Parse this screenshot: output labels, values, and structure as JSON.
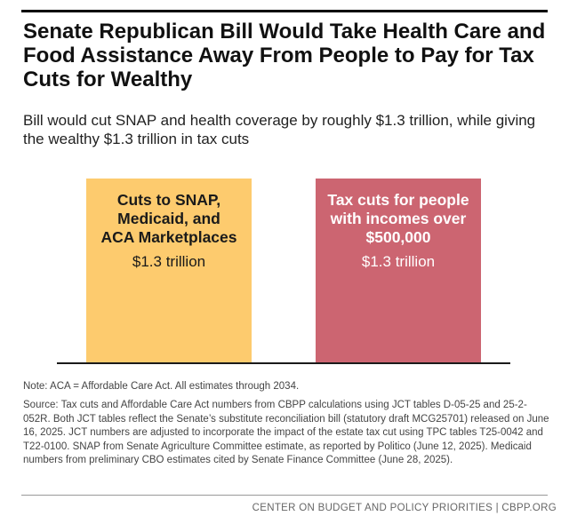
{
  "title": "Senate Republican Bill Would Take Health Care and Food Assistance Away From People to Pay for Tax Cuts for Wealthy",
  "subtitle": "Bill would cut SNAP and health coverage by roughly $1.3 trillion, while giving the wealthy $1.3 trillion in tax cuts",
  "note": "Note: ACA = Affordable Care Act. All estimates through 2034.",
  "source": "Source: Tax cuts and Affordable Care Act numbers from CBPP calculations using JCT tables D-05-25 and 25-2-052R. Both JCT tables reflect the Senate’s substitute reconciliation bill (statutory draft MCG25701) released on June 16, 2025. JCT numbers are adjusted to incorporate the impact of the estate tax cut using TPC tables T25-0042 and T22-0100. SNAP from Senate Agriculture Committee estimate, as reported by Politico (June 12, 2025). Medicaid numbers from preliminary CBO estimates cited by Senate Finance Committee (June 28, 2025).",
  "footer": "CENTER ON BUDGET AND POLICY PRIORITIES | CBPP.ORG",
  "chart_data": {
    "type": "bar",
    "title": "Senate Republican Bill Would Take Health Care and Food Assistance Away From People to Pay for Tax Cuts for Wealthy",
    "subtitle": "Bill would cut SNAP and health coverage by roughly $1.3 trillion, while giving the wealthy $1.3 trillion in tax cuts",
    "categories": [
      [
        "Cuts to SNAP,",
        "Medicaid, and",
        "ACA Marketplaces"
      ],
      [
        "Tax cuts for people",
        "with incomes over",
        "$500,000"
      ]
    ],
    "values": [
      1.3,
      1.3
    ],
    "value_labels": [
      "$1.3 trillion",
      "$1.3 trillion"
    ],
    "unit": "trillion dollars",
    "colors": [
      "#FDCB6E",
      "#CC6571"
    ],
    "ylim": [
      0,
      1.3
    ],
    "grid": false,
    "legend": "none"
  }
}
